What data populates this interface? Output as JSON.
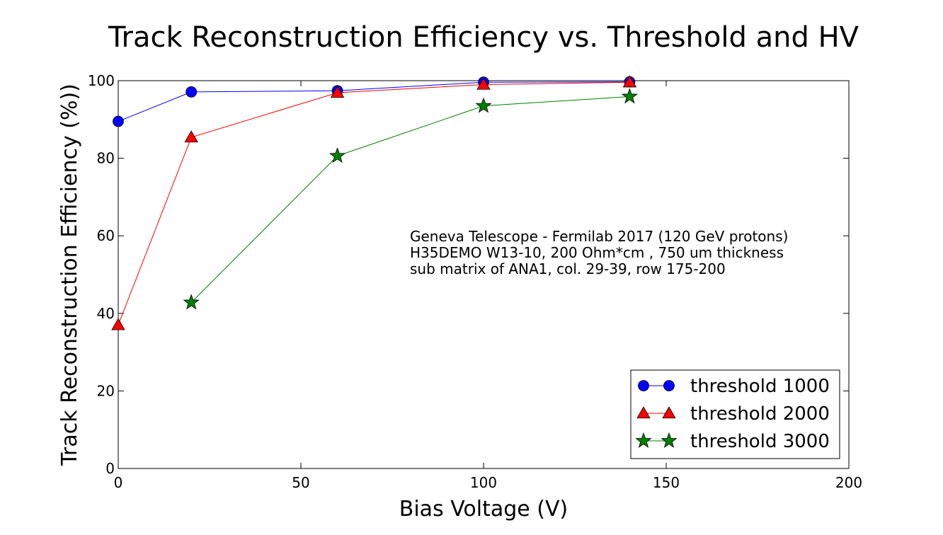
{
  "chart_data": {
    "type": "line",
    "title": "Track Reconstruction Efficiency vs. Threshold and HV",
    "xlabel": "Bias Voltage (V)",
    "ylabel": "Track Reconstruction Efficiency (%))",
    "xlim": [
      0,
      200
    ],
    "ylim": [
      0,
      100
    ],
    "xticks": [
      "0",
      "50",
      "100",
      "150",
      "200"
    ],
    "yticks": [
      "0",
      "20",
      "40",
      "60",
      "80",
      "100"
    ],
    "grid": false,
    "legend_position": "bottom-right",
    "annotation": [
      "Geneva Telescope - Fermilab 2017 (120 GeV protons)",
      "H35DEMO W13-10, 200 Ohm*cm , 750 um thickness",
      "sub matrix of ANA1, col. 29-39, row 175-200"
    ],
    "series": [
      {
        "name": "threshold 1000",
        "color": "#0000ff",
        "marker": "circle",
        "x": [
          0,
          20,
          60,
          100,
          140
        ],
        "y": [
          89.5,
          97.1,
          97.4,
          99.6,
          99.7
        ]
      },
      {
        "name": "threshold 2000",
        "color": "#ff0000",
        "marker": "triangle",
        "x": [
          0,
          20,
          60,
          100,
          140
        ],
        "y": [
          37.0,
          85.4,
          96.9,
          99.0,
          99.6
        ]
      },
      {
        "name": "threshold 3000",
        "color": "#008000",
        "marker": "star",
        "x": [
          20,
          60,
          100,
          140
        ],
        "y": [
          42.8,
          80.6,
          93.5,
          95.9
        ]
      }
    ]
  }
}
